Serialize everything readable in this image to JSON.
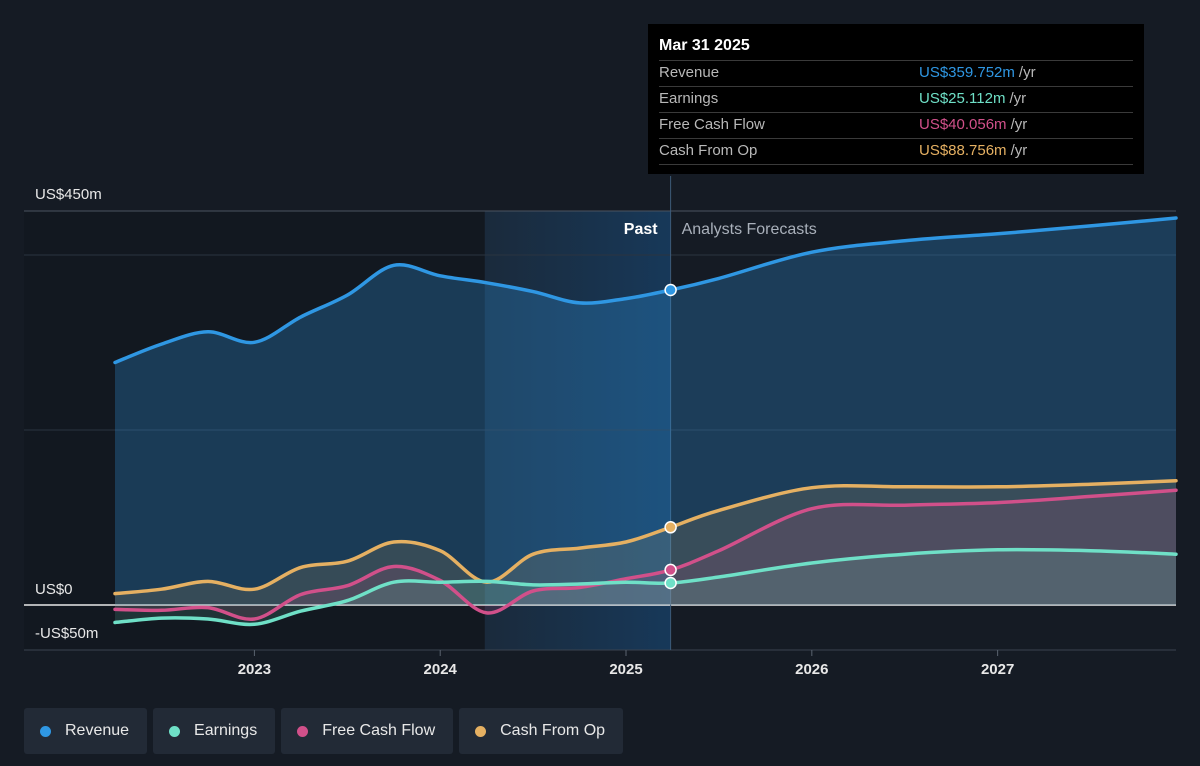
{
  "tooltip": {
    "date": "Mar 31 2025",
    "rows": [
      {
        "label": "Revenue",
        "value": "US$359.752m",
        "unit": "/yr",
        "color": "#2f97e3"
      },
      {
        "label": "Earnings",
        "value": "US$25.112m",
        "unit": "/yr",
        "color": "#6fe0c7"
      },
      {
        "label": "Free Cash Flow",
        "value": "US$40.056m",
        "unit": "/yr",
        "color": "#d1508a"
      },
      {
        "label": "Cash From Op",
        "value": "US$88.756m",
        "unit": "/yr",
        "color": "#e5b062"
      }
    ]
  },
  "legend": [
    {
      "label": "Revenue",
      "color": "#2f97e3"
    },
    {
      "label": "Earnings",
      "color": "#6fe0c7"
    },
    {
      "label": "Free Cash Flow",
      "color": "#d1508a"
    },
    {
      "label": "Cash From Op",
      "color": "#e5b062"
    }
  ],
  "chart_data": {
    "type": "line",
    "title": "",
    "xlabel": "",
    "ylabel": "",
    "ylim": [
      -50,
      450
    ],
    "y_tick_labels": [
      {
        "value": 450,
        "label": "US$450m"
      },
      {
        "value": 0,
        "label": "US$0"
      },
      {
        "value": -50,
        "label": "-US$50m"
      }
    ],
    "x_tick_labels": [
      {
        "value": 2023,
        "label": "2023"
      },
      {
        "value": 2024,
        "label": "2024"
      },
      {
        "value": 2025,
        "label": "2025"
      },
      {
        "value": 2026,
        "label": "2026"
      },
      {
        "value": 2027,
        "label": "2027"
      }
    ],
    "xlim": [
      2021.76,
      2027.96
    ],
    "divider_x": 2025.24,
    "highlight_start_x": 2024.24,
    "past_label": "Past",
    "forecast_label": "Analysts Forecasts",
    "grid": true,
    "legend_position": "bottom-left",
    "series": [
      {
        "name": "Revenue",
        "color": "#2f97e3",
        "fill_opacity": 0.28,
        "points": [
          [
            2022.25,
            277
          ],
          [
            2022.5,
            298
          ],
          [
            2022.75,
            312
          ],
          [
            2023.0,
            300
          ],
          [
            2023.25,
            329
          ],
          [
            2023.5,
            354
          ],
          [
            2023.75,
            388
          ],
          [
            2024.0,
            376
          ],
          [
            2024.25,
            368
          ],
          [
            2024.5,
            358
          ],
          [
            2024.75,
            345
          ],
          [
            2025.0,
            350
          ],
          [
            2025.24,
            359.752
          ]
        ],
        "forecast": [
          [
            2025.24,
            359.752
          ],
          [
            2025.5,
            373
          ],
          [
            2026.0,
            403
          ],
          [
            2026.5,
            416
          ],
          [
            2027.0,
            424
          ],
          [
            2027.5,
            433
          ],
          [
            2027.96,
            442
          ]
        ]
      },
      {
        "name": "Cash From Op",
        "color": "#e5b062",
        "fill_opacity": 0.14,
        "points": [
          [
            2022.25,
            13
          ],
          [
            2022.5,
            18
          ],
          [
            2022.75,
            27
          ],
          [
            2023.0,
            18
          ],
          [
            2023.25,
            43
          ],
          [
            2023.5,
            50
          ],
          [
            2023.75,
            72
          ],
          [
            2024.0,
            62
          ],
          [
            2024.25,
            26
          ],
          [
            2024.5,
            58
          ],
          [
            2024.75,
            65
          ],
          [
            2025.0,
            72
          ],
          [
            2025.24,
            88.756
          ]
        ],
        "forecast": [
          [
            2025.24,
            88.756
          ],
          [
            2025.5,
            108
          ],
          [
            2026.0,
            134
          ],
          [
            2026.5,
            135
          ],
          [
            2027.0,
            135
          ],
          [
            2027.5,
            138
          ],
          [
            2027.96,
            142
          ]
        ]
      },
      {
        "name": "Free Cash Flow",
        "color": "#d1508a",
        "fill_opacity": 0.14,
        "points": [
          [
            2022.25,
            -5
          ],
          [
            2022.5,
            -6
          ],
          [
            2022.75,
            -3
          ],
          [
            2023.0,
            -16
          ],
          [
            2023.25,
            12
          ],
          [
            2023.5,
            22
          ],
          [
            2023.75,
            44
          ],
          [
            2024.0,
            28
          ],
          [
            2024.25,
            -9
          ],
          [
            2024.5,
            16
          ],
          [
            2024.75,
            20
          ],
          [
            2025.0,
            30
          ],
          [
            2025.24,
            40.056
          ]
        ],
        "forecast": [
          [
            2025.24,
            40.056
          ],
          [
            2025.5,
            62
          ],
          [
            2026.0,
            110
          ],
          [
            2026.5,
            114
          ],
          [
            2027.0,
            117
          ],
          [
            2027.5,
            124
          ],
          [
            2027.96,
            131
          ]
        ]
      },
      {
        "name": "Earnings",
        "color": "#6fe0c7",
        "fill_opacity": 0.14,
        "points": [
          [
            2022.25,
            -20
          ],
          [
            2022.5,
            -15
          ],
          [
            2022.75,
            -16
          ],
          [
            2023.0,
            -22
          ],
          [
            2023.25,
            -7
          ],
          [
            2023.5,
            5
          ],
          [
            2023.75,
            26
          ],
          [
            2024.0,
            26
          ],
          [
            2024.25,
            27
          ],
          [
            2024.5,
            23
          ],
          [
            2024.75,
            24
          ],
          [
            2025.0,
            26
          ],
          [
            2025.24,
            25.112
          ]
        ],
        "forecast": [
          [
            2025.24,
            25.112
          ],
          [
            2025.5,
            32
          ],
          [
            2026.0,
            48
          ],
          [
            2026.5,
            58
          ],
          [
            2027.0,
            63
          ],
          [
            2027.5,
            62
          ],
          [
            2027.96,
            58
          ]
        ]
      }
    ]
  }
}
